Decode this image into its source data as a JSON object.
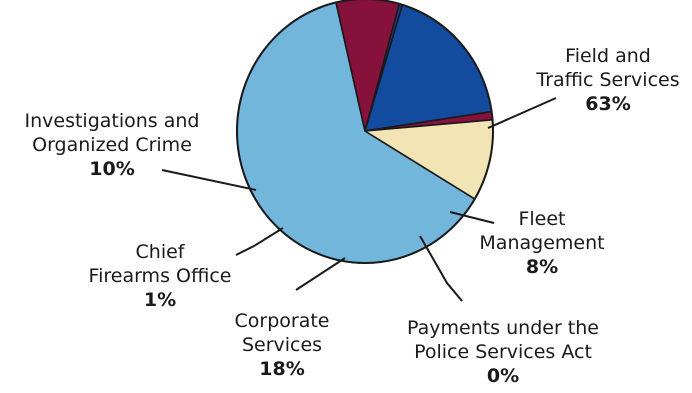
{
  "chart_data": {
    "type": "pie",
    "title": "",
    "slices": [
      {
        "lines": [
          "Field and",
          "Traffic Services"
        ],
        "percent_label": "63%",
        "value": 63,
        "color": "#73b6dc"
      },
      {
        "lines": [
          "Fleet",
          "Management"
        ],
        "percent_label": "8%",
        "value": 8,
        "color": "#86113a"
      },
      {
        "lines": [
          "Payments under the",
          "Police Services Act"
        ],
        "percent_label": "0%",
        "value": 0.4,
        "color": "#1e3a8c"
      },
      {
        "lines": [
          "Corporate",
          "Services"
        ],
        "percent_label": "18%",
        "value": 18,
        "color": "#134b9f"
      },
      {
        "lines": [
          "Chief",
          "Firearms Office"
        ],
        "percent_label": "1%",
        "value": 1,
        "color": "#86113a"
      },
      {
        "lines": [
          "Investigations and",
          "Organized Crime"
        ],
        "percent_label": "10%",
        "value": 10,
        "color": "#f3e4b6"
      }
    ],
    "legend": "none (callout labels)"
  }
}
